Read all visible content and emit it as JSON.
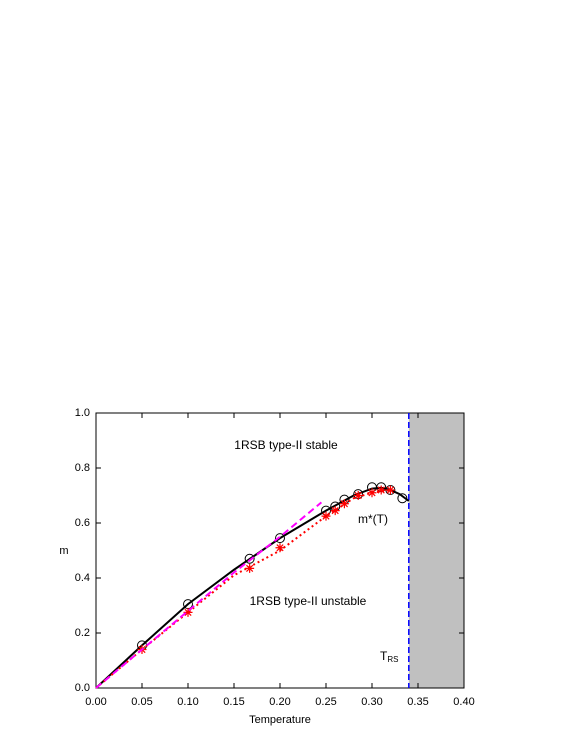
{
  "chart_data": {
    "type": "line",
    "x_label": "Temperature",
    "y_label": "m",
    "xlim": [
      0,
      0.4
    ],
    "ylim": [
      0,
      1.0
    ],
    "xticks": [
      {
        "value": 0,
        "label": "0.00"
      },
      {
        "value": 0.05,
        "label": "0.05"
      },
      {
        "value": 0.1,
        "label": "0.10"
      },
      {
        "value": 0.15,
        "label": "0.15"
      },
      {
        "value": 0.2,
        "label": "0.20"
      },
      {
        "value": 0.25,
        "label": "0.25"
      },
      {
        "value": 0.3,
        "label": "0.30"
      },
      {
        "value": 0.35,
        "label": "0.35"
      },
      {
        "value": 0.4,
        "label": "0.40"
      }
    ],
    "yticks": [
      {
        "value": 0,
        "label": "0.0"
      },
      {
        "value": 0.2,
        "label": "0.2"
      },
      {
        "value": 0.4,
        "label": "0.4"
      },
      {
        "value": 0.6,
        "label": "0.6"
      },
      {
        "value": 0.8,
        "label": "0.8"
      },
      {
        "value": 1.0,
        "label": "1.0"
      }
    ],
    "shaded_region": {
      "x": [
        0.34,
        0.4
      ],
      "color": "#c0c0c0"
    },
    "vline": {
      "x": 0.34,
      "color": "#0000ff"
    },
    "annotations": [
      "1RSB type-II stable",
      "m*(T)",
      "1RSB type-II unstable",
      {
        "text": "T",
        "sub": "RS"
      }
    ],
    "series": [
      {
        "color": "#000000",
        "style": "solid",
        "marker": "none",
        "x": [
          0,
          0.05,
          0.1,
          0.15,
          0.2,
          0.25,
          0.28,
          0.3,
          0.31,
          0.32,
          0.33,
          0.34
        ],
        "values": [
          0,
          0.155,
          0.305,
          0.43,
          0.545,
          0.645,
          0.7,
          0.725,
          0.728,
          0.72,
          0.705,
          0.68
        ]
      },
      {
        "color": "#000000",
        "style": "none",
        "marker": "circle",
        "x": [
          0.05,
          0.1,
          0.167,
          0.2,
          0.25,
          0.26,
          0.27,
          0.285,
          0.3,
          0.31,
          0.32,
          0.333
        ],
        "values": [
          0.155,
          0.305,
          0.47,
          0.545,
          0.645,
          0.66,
          0.685,
          0.705,
          0.73,
          0.73,
          0.72,
          0.69
        ]
      },
      {
        "color": "#ff0000",
        "style": "dotted",
        "marker": "none",
        "x": [
          0,
          0.05,
          0.1,
          0.15,
          0.2,
          0.25,
          0.28,
          0.3,
          0.32
        ],
        "values": [
          0,
          0.14,
          0.275,
          0.41,
          0.5,
          0.625,
          0.69,
          0.71,
          0.72
        ]
      },
      {
        "color": "#ff0000",
        "style": "none",
        "marker": "star",
        "x": [
          0.05,
          0.1,
          0.167,
          0.2,
          0.25,
          0.26,
          0.27,
          0.285,
          0.3,
          0.31,
          0.32
        ],
        "values": [
          0.14,
          0.275,
          0.435,
          0.51,
          0.625,
          0.645,
          0.67,
          0.7,
          0.71,
          0.72,
          0.72
        ]
      },
      {
        "color": "#ff00ff",
        "style": "dashed",
        "marker": "none",
        "x": [
          0,
          0.05,
          0.1,
          0.15,
          0.2,
          0.245
        ],
        "values": [
          0,
          0.14,
          0.28,
          0.42,
          0.55,
          0.675
        ]
      }
    ]
  }
}
